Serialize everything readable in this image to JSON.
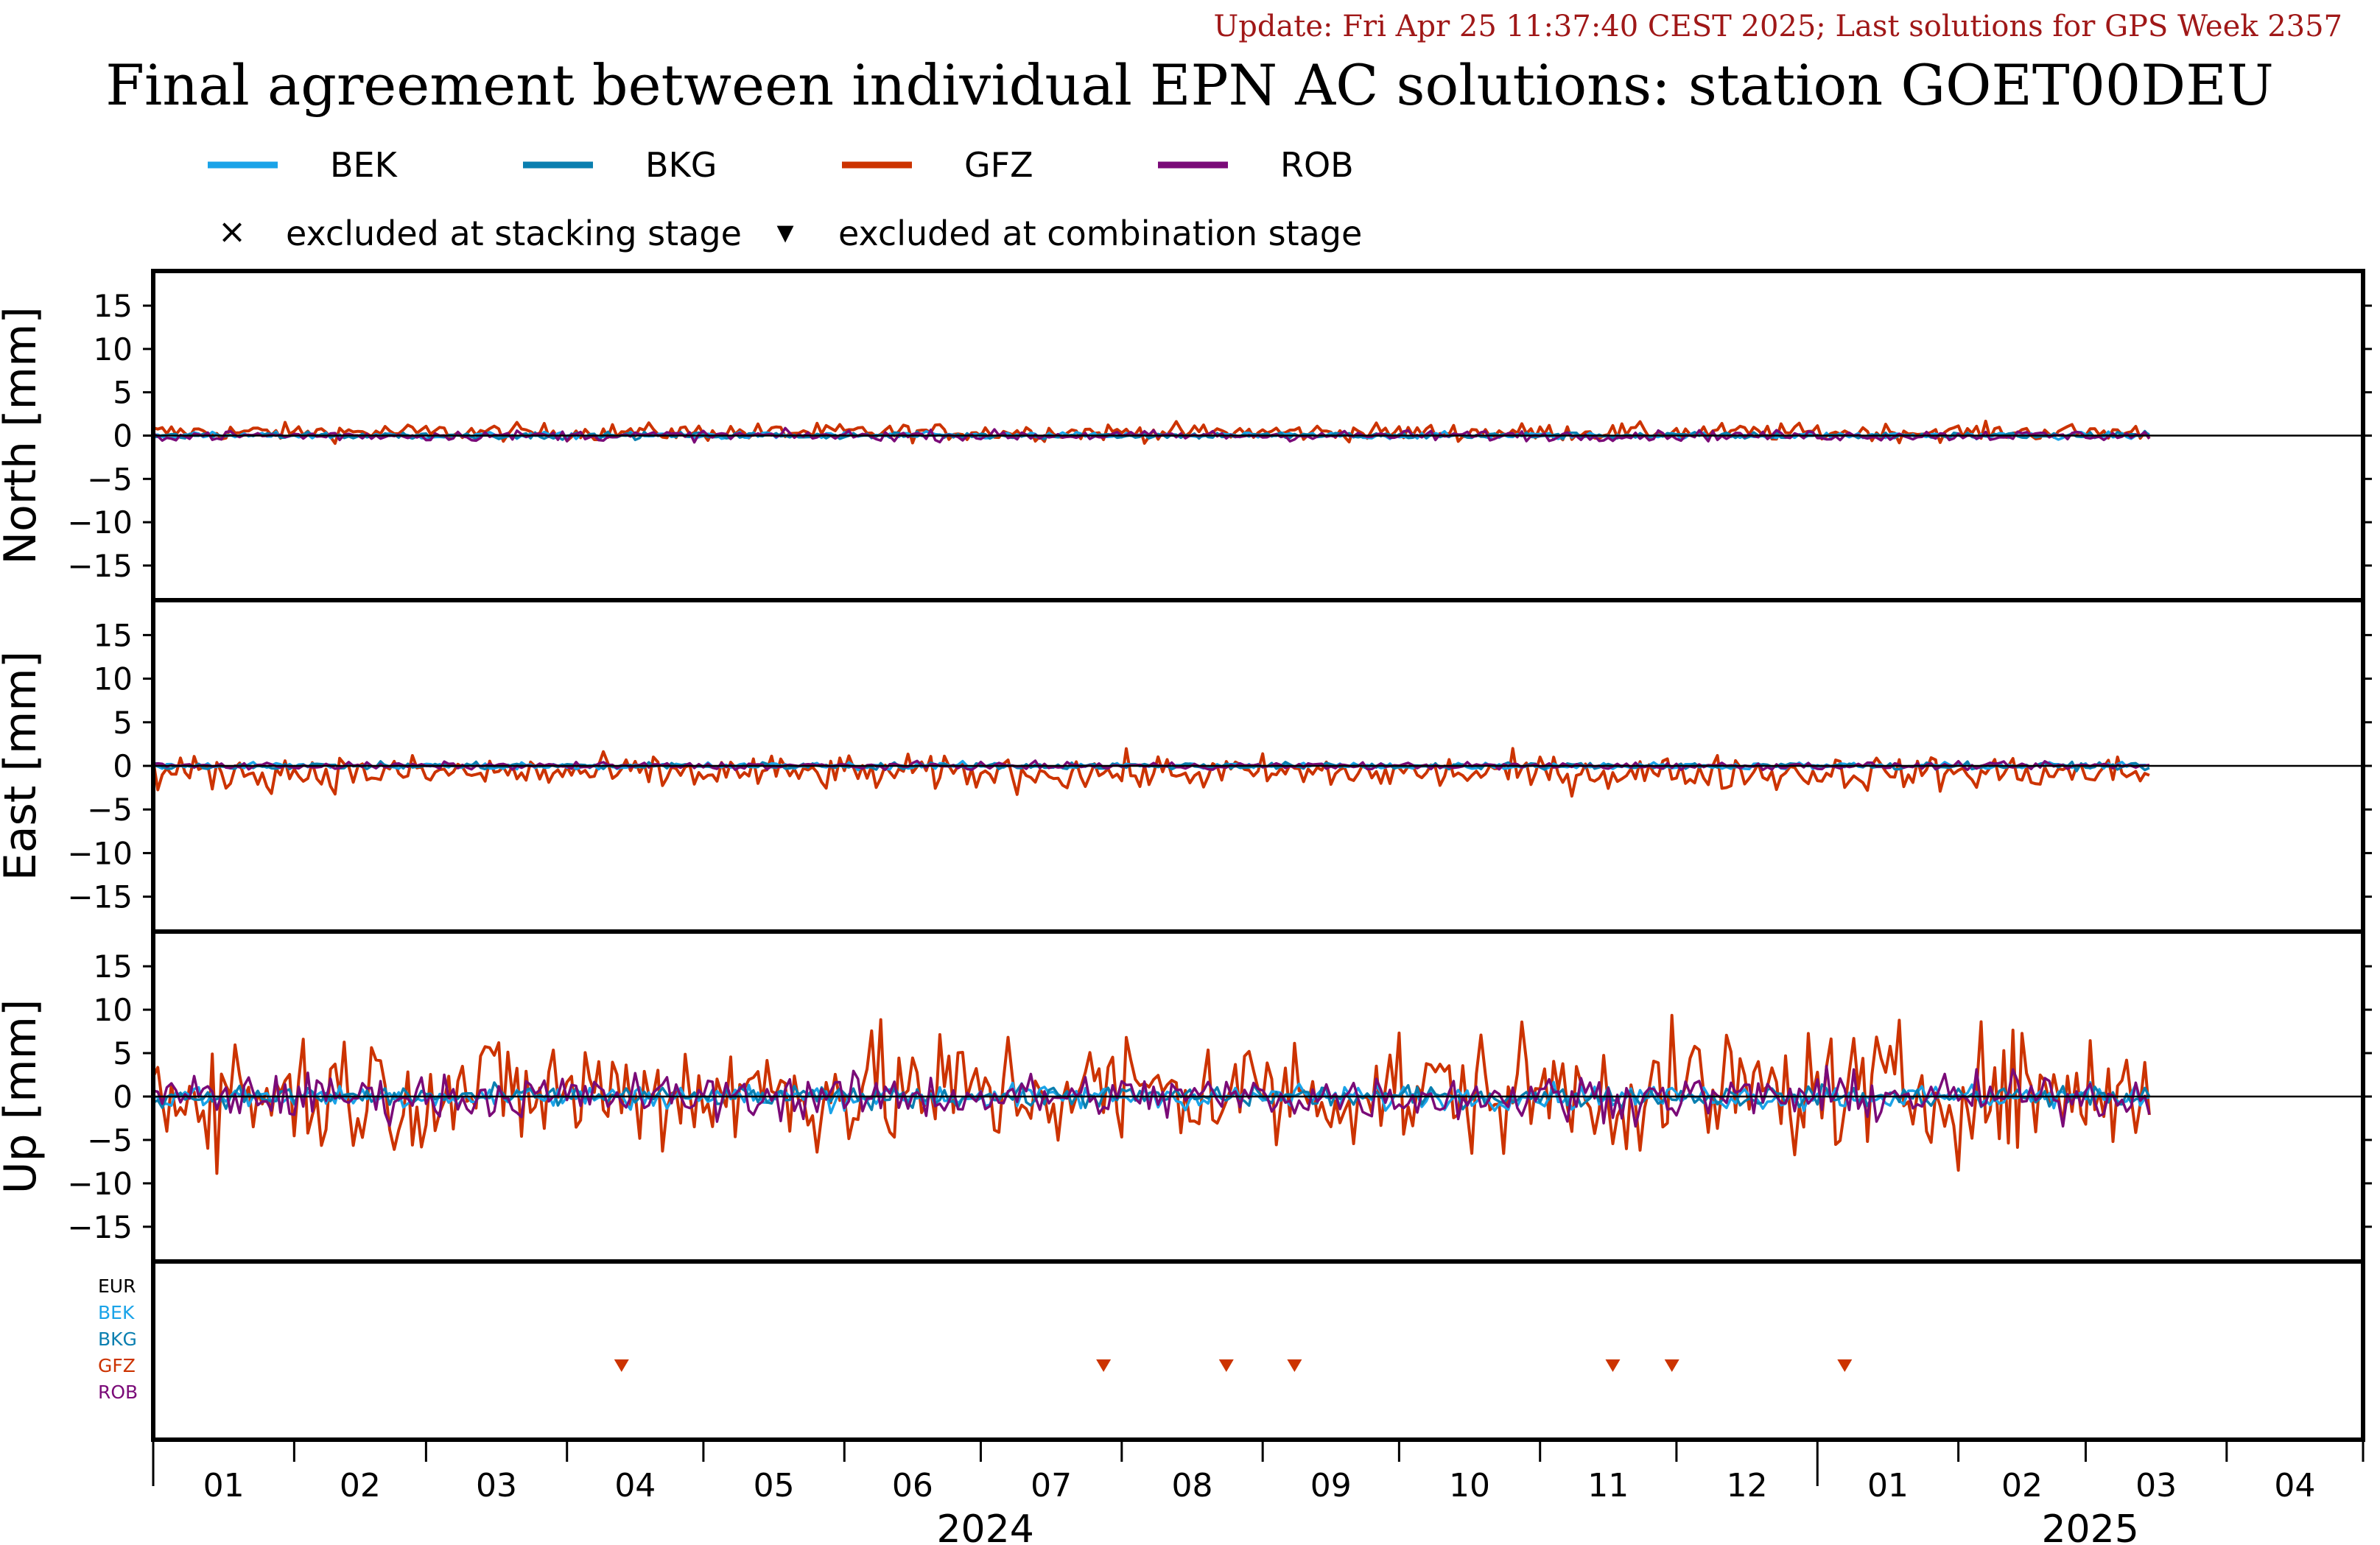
{
  "update_text": "Update: Fri Apr 25 11:37:40 CEST 2025; Last solutions for GPS Week 2357",
  "title": "Final agreement between individual EPN AC solutions: station GOET00DEU",
  "legend": {
    "series": [
      {
        "name": "BEK",
        "color": "#1aa3e8"
      },
      {
        "name": "BKG",
        "color": "#0a7fb0"
      },
      {
        "name": "GFZ",
        "color": "#cc3300"
      },
      {
        "name": "ROB",
        "color": "#7a0a78"
      }
    ],
    "markers": [
      {
        "symbol": "×",
        "label": "excluded at stacking stage"
      },
      {
        "symbol": "▾",
        "label": "excluded at combination stage"
      }
    ]
  },
  "chart_data": {
    "type": "line",
    "x_axis": {
      "months": [
        "01",
        "02",
        "03",
        "04",
        "05",
        "06",
        "07",
        "08",
        "09",
        "10",
        "11",
        "12",
        "01",
        "02",
        "03",
        "04"
      ],
      "years": [
        "2024",
        "2025"
      ],
      "range": [
        "2024-01-01",
        "2025-04-30"
      ]
    },
    "panels": [
      {
        "ylabel": "North [mm]",
        "ylim": [
          -19,
          19
        ],
        "yticks": [
          15,
          10,
          5,
          0,
          -5,
          -10,
          -15
        ]
      },
      {
        "ylabel": "East [mm]",
        "ylim": [
          -19,
          19
        ],
        "yticks": [
          15,
          10,
          5,
          0,
          -5,
          -10,
          -15
        ]
      },
      {
        "ylabel": "Up [mm]",
        "ylim": [
          -19,
          19
        ],
        "yticks": [
          15,
          10,
          5,
          0,
          -5,
          -10,
          -15
        ]
      }
    ],
    "series_colors": {
      "BEK": "#1aa3e8",
      "BKG": "#0a7fb0",
      "GFZ": "#cc3300",
      "ROB": "#7a0a78"
    },
    "exclusion_rows": [
      {
        "name": "EUR",
        "color": "#000000"
      },
      {
        "name": "BEK",
        "color": "#1aa3e8"
      },
      {
        "name": "BKG",
        "color": "#0a7fb0"
      },
      {
        "name": "GFZ",
        "color": "#cc3300"
      },
      {
        "name": "ROB",
        "color": "#7a0a78"
      }
    ],
    "combination_exclusions": [
      {
        "ac": "GFZ",
        "date": "2024-04-13"
      },
      {
        "ac": "GFZ",
        "date": "2024-07-28"
      },
      {
        "ac": "GFZ",
        "date": "2024-08-24"
      },
      {
        "ac": "GFZ",
        "date": "2024-09-08"
      },
      {
        "ac": "GFZ",
        "date": "2024-11-17"
      },
      {
        "ac": "GFZ",
        "date": "2024-11-30"
      },
      {
        "ac": "GFZ",
        "date": "2025-01-07"
      }
    ],
    "series": [
      {
        "name": "BEK",
        "start": "2024-01-01",
        "end": "2025-03-15",
        "amplitude_mm": {
          "north": 0.2,
          "east": 0.2,
          "up": 0.7
        }
      },
      {
        "name": "BKG",
        "start": "2024-01-01",
        "end": "2025-03-15",
        "amplitude_mm": {
          "north": 0.2,
          "east": 0.2,
          "up": 0.6
        }
      },
      {
        "name": "GFZ",
        "start": "2024-01-01",
        "end": "2025-03-15",
        "mean_mm": {
          "north": 0.4,
          "east": -0.8,
          "up": 0.6
        },
        "amplitude_mm": {
          "north": 0.5,
          "east": 1.0,
          "up": 3.6
        }
      },
      {
        "name": "ROB",
        "start": "2024-01-01",
        "end": "2025-03-15",
        "amplitude_mm": {
          "north": 0.3,
          "east": 0.2,
          "up": 1.3
        }
      }
    ]
  }
}
